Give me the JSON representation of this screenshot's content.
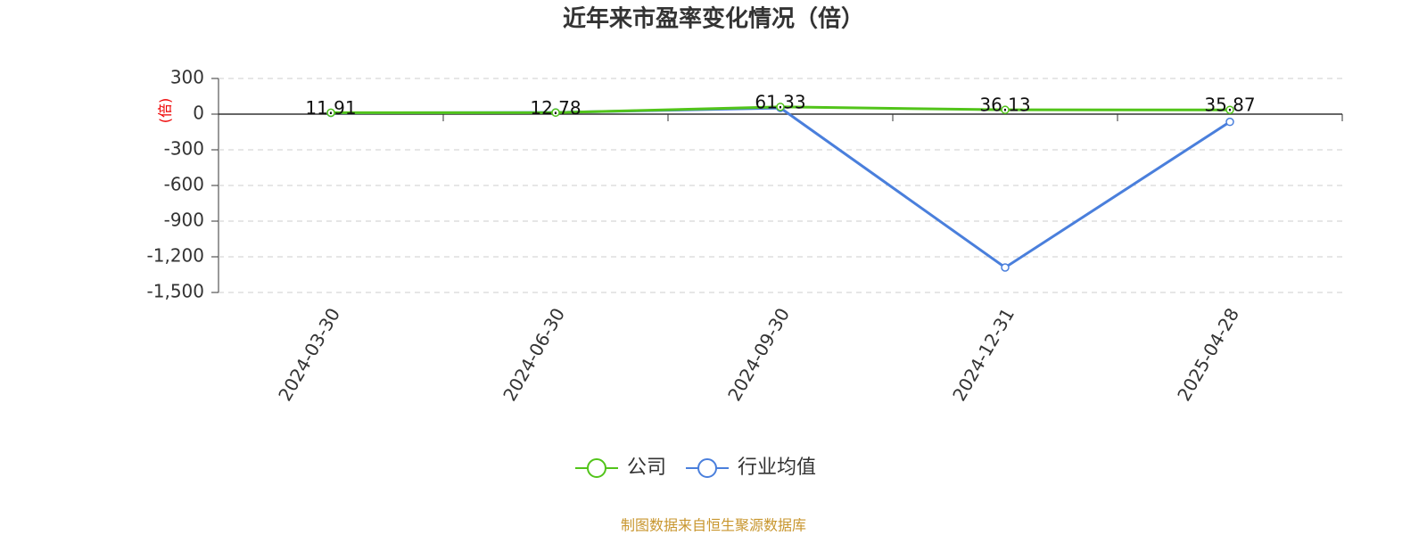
{
  "chart_data": {
    "type": "line",
    "title": "近年来市盈率变化情况（倍）",
    "y_label": "(倍)",
    "categories": [
      "2024-03-30",
      "2024-06-30",
      "2024-09-30",
      "2024-12-31",
      "2025-04-28"
    ],
    "series": [
      {
        "name": "公司",
        "color": "#52c41a",
        "values": [
          11.91,
          12.78,
          61.33,
          36.13,
          35.87
        ]
      },
      {
        "name": "行业均值",
        "color": "#4a7fdc",
        "values": [
          10,
          14,
          52,
          -1290,
          -65
        ]
      }
    ],
    "ylim": [
      -1500,
      300
    ],
    "yticks": [
      {
        "value": -1500,
        "label": "-1,500"
      },
      {
        "value": -1200,
        "label": "-1,200"
      },
      -900,
      -600,
      -300,
      0,
      300
    ],
    "grid": true,
    "source": "制图数据来自恒生聚源数据库"
  }
}
